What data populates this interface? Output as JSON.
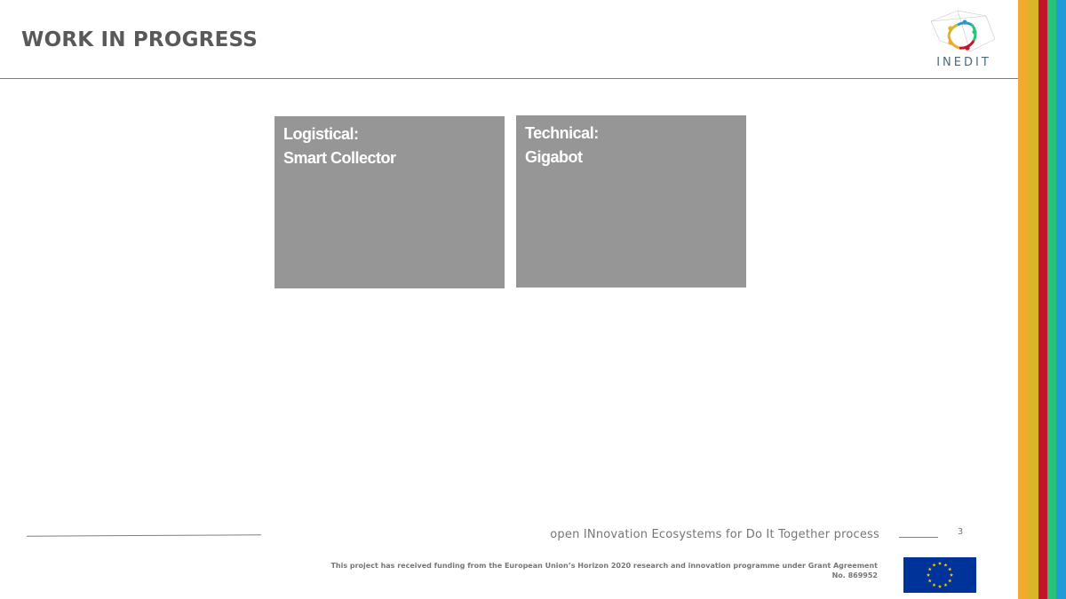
{
  "header": {
    "title": "WORK IN PROGRESS",
    "logo_text": "INEDIT"
  },
  "brand_stripes": [
    "#f2a930",
    "#d9b52a",
    "#c0172b",
    "#28c27a",
    "#1f9bd7"
  ],
  "cards": [
    {
      "heading": "Logistical:",
      "subtitle": "Smart Collector"
    },
    {
      "heading": "Technical:",
      "subtitle": "Gigabot"
    }
  ],
  "footer": {
    "tagline": "open INnovation Ecosystems for Do It Together process",
    "page_number": "3",
    "funding_text": "This project has received funding from the European Union’s Horizon 2020 research and innovation programme under Grant Agreement No. 869952"
  },
  "colors": {
    "card_background": "#969696",
    "title_color": "#595959",
    "eu_blue": "#003399",
    "eu_gold": "#ffcc00"
  }
}
